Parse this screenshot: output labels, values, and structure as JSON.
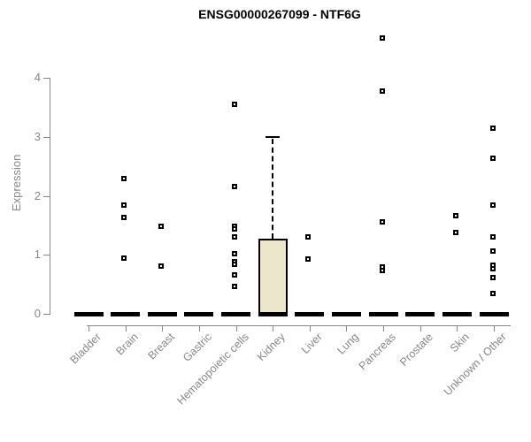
{
  "chart_data": {
    "type": "boxplot",
    "title": "ENSG00000267099 - NTF6G",
    "ylabel": "Expression",
    "ylim": [
      0,
      4
    ],
    "yticks": [
      "0",
      "1",
      "2",
      "3",
      "4"
    ],
    "grid": "off",
    "legend": "none",
    "categories": [
      "Bladder",
      "Brain",
      "Breast",
      "Gastric",
      "Hematopoietic cells",
      "Kidney",
      "Liver",
      "Lung",
      "Pancreas",
      "Prostate",
      "Skin",
      "Unknown / Other"
    ],
    "groups": [
      {
        "label": "Bladder",
        "q1": 0,
        "median": 0,
        "q3": 0,
        "whisker_low": 0,
        "whisker_high": 0,
        "points": []
      },
      {
        "label": "Brain",
        "q1": 0,
        "median": 0,
        "q3": 0,
        "whisker_low": 0,
        "whisker_high": 0,
        "points": [
          2.29,
          1.84,
          1.63,
          0.95
        ]
      },
      {
        "label": "Breast",
        "q1": 0,
        "median": 0,
        "q3": 0,
        "whisker_low": 0,
        "whisker_high": 0,
        "points": [
          1.48,
          0.81
        ]
      },
      {
        "label": "Gastric",
        "q1": 0,
        "median": 0,
        "q3": 0,
        "whisker_low": 0,
        "whisker_high": 0,
        "points": []
      },
      {
        "label": "Hematopoietic cells",
        "q1": 0,
        "median": 0,
        "q3": 0,
        "whisker_low": 0,
        "whisker_high": 0,
        "points": [
          3.55,
          2.16,
          1.48,
          1.44,
          1.3,
          1.02,
          0.88,
          0.84,
          0.66,
          0.46
        ]
      },
      {
        "label": "Kidney",
        "q1": 0,
        "median": 0,
        "q3": 1.27,
        "whisker_low": 0,
        "whisker_high": 3.0,
        "points": []
      },
      {
        "label": "Liver",
        "q1": 0,
        "median": 0,
        "q3": 0,
        "whisker_low": 0,
        "whisker_high": 0,
        "points": [
          1.3,
          0.93
        ]
      },
      {
        "label": "Lung",
        "q1": 0,
        "median": 0,
        "q3": 0,
        "whisker_low": 0,
        "whisker_high": 0,
        "points": []
      },
      {
        "label": "Pancreas",
        "q1": 0,
        "median": 0,
        "q3": 0,
        "whisker_low": 0,
        "whisker_high": 0,
        "points": [
          4.67,
          3.78,
          1.56,
          0.8,
          0.73
        ]
      },
      {
        "label": "Prostate",
        "q1": 0,
        "median": 0,
        "q3": 0,
        "whisker_low": 0,
        "whisker_high": 0,
        "points": []
      },
      {
        "label": "Skin",
        "q1": 0,
        "median": 0,
        "q3": 0,
        "whisker_low": 0,
        "whisker_high": 0,
        "points": [
          1.66,
          1.38
        ]
      },
      {
        "label": "Unknown / Other",
        "q1": 0,
        "median": 0,
        "q3": 0,
        "whisker_low": 0,
        "whisker_high": 0,
        "points": [
          3.15,
          2.64,
          1.84,
          1.3,
          1.06,
          0.83,
          0.76,
          0.61,
          0.34
        ]
      }
    ],
    "colors": {
      "axis": "#878787",
      "title_text": "#000000",
      "box_fill": "#ECE7CB",
      "box_border": "#000000",
      "median": "#000000",
      "marker": "#000000",
      "background": "#ffffff"
    }
  }
}
